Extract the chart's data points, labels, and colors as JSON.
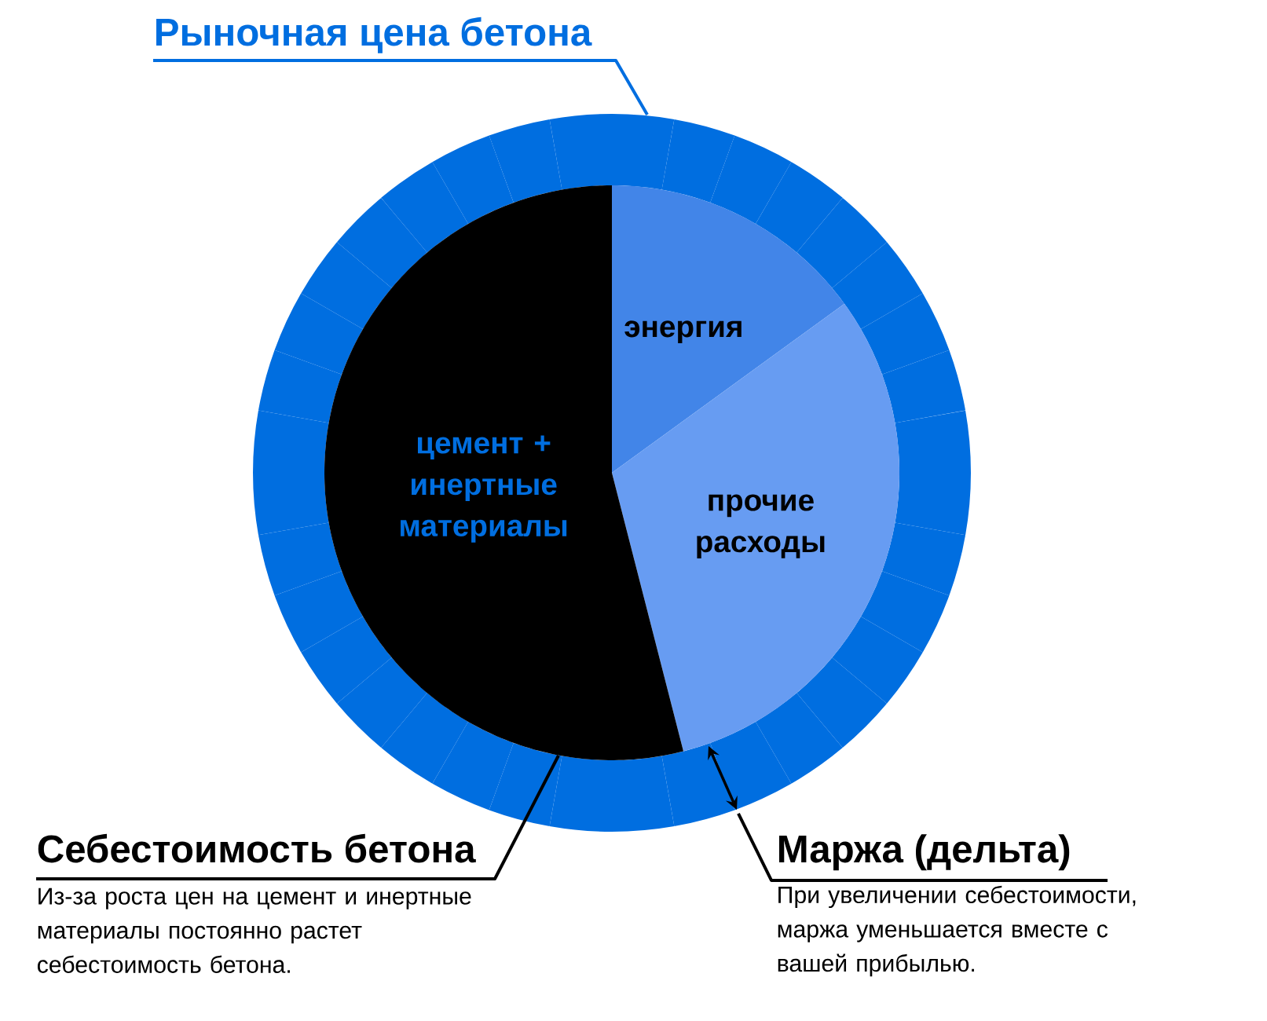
{
  "chart_data": {
    "type": "pie",
    "title": "Рыночная цена бетона",
    "categories": [
      "энергия",
      "прочие расходы",
      "цемент + инертные материалы"
    ],
    "values": [
      15,
      31,
      54
    ],
    "colors": [
      "#4285e8",
      "#679cf2",
      "#000000"
    ],
    "annotations": [
      "Себестоимость бетона",
      "Из-за роста цен на цемент и инертные материалы постоянно растет себестоимость бетона.",
      "Маржа (дельта)",
      "При увеличении себестоимости, маржа уменьшается вместе с вашей прибылью."
    ]
  }
}
